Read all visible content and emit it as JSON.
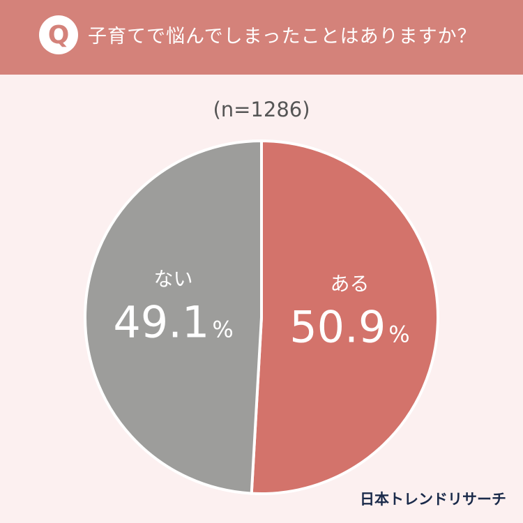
{
  "header": {
    "badge": "Q",
    "question": "子育てで悩んでしまったことはありますか？"
  },
  "sample": "(n=1286)",
  "chart_data": {
    "type": "pie",
    "categories": [
      "ある",
      "ない"
    ],
    "values": [
      50.9,
      49.1
    ],
    "unit": "%",
    "colors": [
      "#d3736b",
      "#9d9d9b"
    ],
    "start": "top",
    "direction": "clockwise"
  },
  "brand": "日本トレンドリサーチ"
}
